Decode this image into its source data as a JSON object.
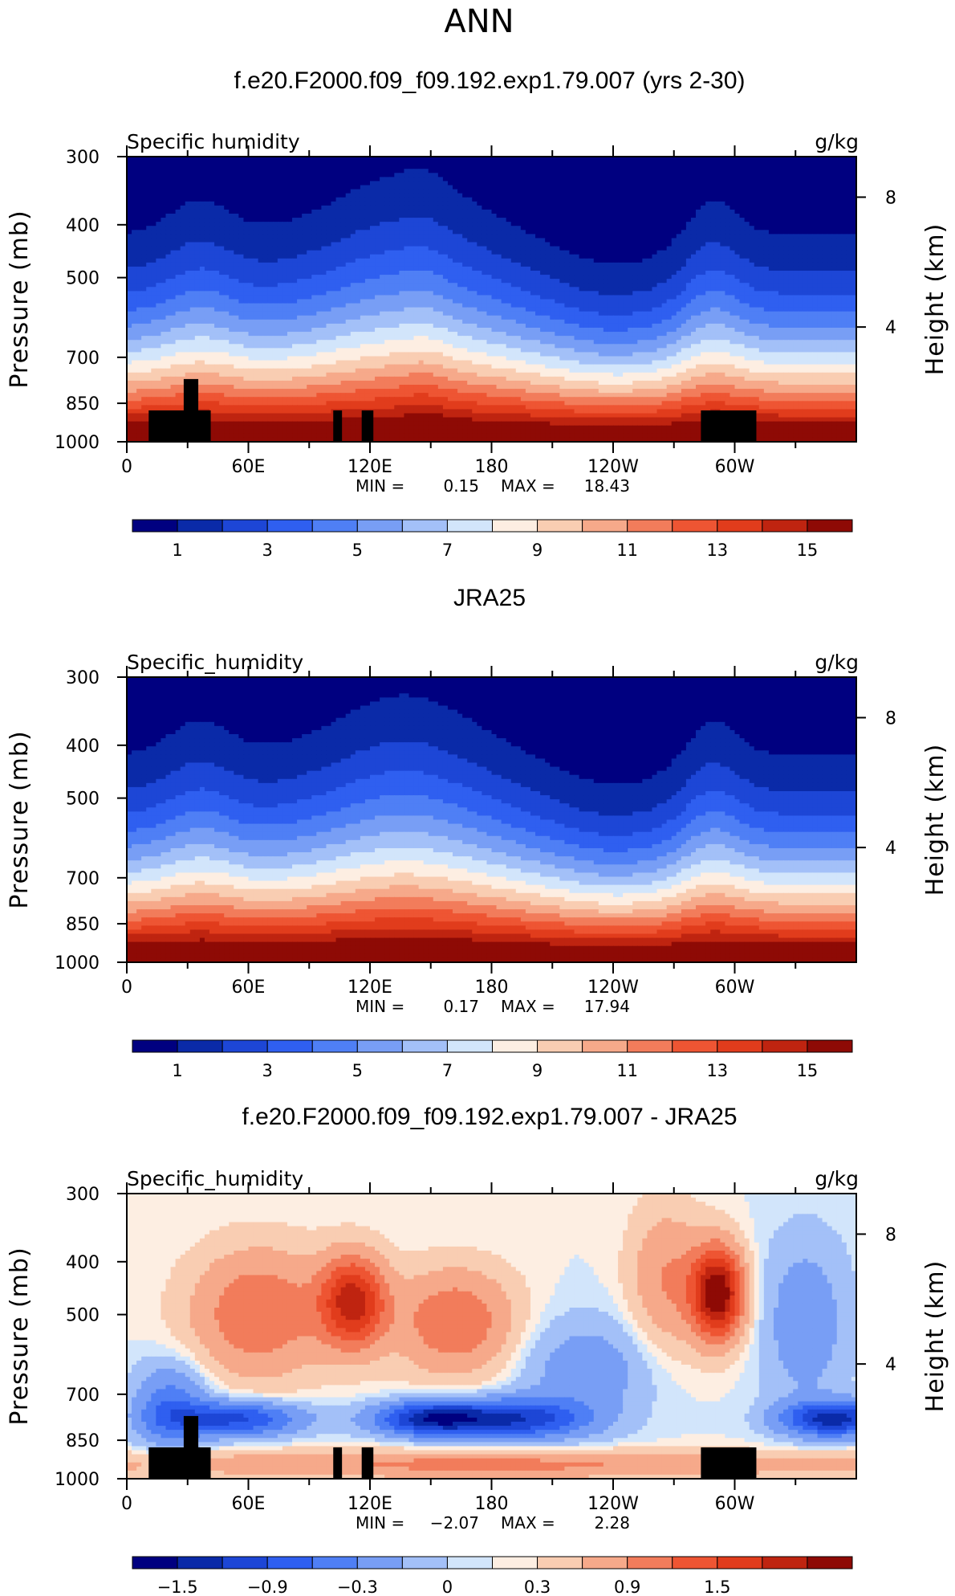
{
  "figure_title": "ANN",
  "panels": [
    {
      "title": "f.e20.F2000.f09_f09.192.exp1.79.007 (yrs 2-30)",
      "variable_label": "Specific humidity",
      "units": "g/kg",
      "min_label": "MIN =",
      "min_value": "0.15",
      "max_label": "MAX =",
      "max_value": "18.43",
      "colorbar_labels": [
        "1",
        "3",
        "5",
        "7",
        "9",
        "11",
        "13",
        "15"
      ]
    },
    {
      "title": "JRA25",
      "variable_label": "Specific_humidity",
      "units": "g/kg",
      "min_label": "MIN =",
      "min_value": "0.17",
      "max_label": "MAX =",
      "max_value": "17.94",
      "colorbar_labels": [
        "1",
        "3",
        "5",
        "7",
        "9",
        "11",
        "13",
        "15"
      ]
    },
    {
      "title": "f.e20.F2000.f09_f09.192.exp1.79.007 - JRA25",
      "variable_label": "Specific_humidity",
      "units": "g/kg",
      "min_label": "MIN =",
      "min_value": "−2.07",
      "max_label": "MAX =",
      "max_value": "2.28",
      "colorbar_labels": [
        "−1.5",
        "−0.9",
        "−0.3",
        "0",
        "0.3",
        "0.9",
        "1.5"
      ]
    }
  ],
  "chart_data": [
    {
      "type": "heatmap",
      "title": "f.e20.F2000.f09_f09.192.exp1.79.007 (yrs 2-30)",
      "xlabel": "",
      "ylabel": "Pressure (mb)",
      "y2label": "Height (km)",
      "x_ticks": [
        "0",
        "60E",
        "120E",
        "180",
        "120W",
        "60W"
      ],
      "y_ticks": [
        "300",
        "400",
        "500",
        "700",
        "850",
        "1000"
      ],
      "y2_ticks": [
        "8",
        "4"
      ],
      "ylim": [
        1000,
        300
      ],
      "colorbar_levels": [
        0,
        1,
        2,
        3,
        4,
        5,
        6,
        7,
        8,
        9,
        10,
        11,
        12,
        13,
        14,
        15,
        16
      ],
      "colorbar_colors": [
        "#000080",
        "#0a2aa8",
        "#1d46d6",
        "#2f5ff0",
        "#4f7ff5",
        "#789ef5",
        "#a3c0f8",
        "#d2e5fb",
        "#fdeee2",
        "#f9cdb2",
        "#f6a98a",
        "#f27c5b",
        "#ee5533",
        "#e13c1c",
        "#bf2410",
        "#8e0a05"
      ],
      "z_min": 0.15,
      "z_max": 18.43,
      "legend": "bottom"
    },
    {
      "type": "heatmap",
      "title": "JRA25",
      "xlabel": "",
      "ylabel": "Pressure (mb)",
      "y2label": "Height (km)",
      "x_ticks": [
        "0",
        "60E",
        "120E",
        "180",
        "120W",
        "60W"
      ],
      "y_ticks": [
        "300",
        "400",
        "500",
        "700",
        "850",
        "1000"
      ],
      "y2_ticks": [
        "8",
        "4"
      ],
      "ylim": [
        1000,
        300
      ],
      "colorbar_levels": [
        0,
        1,
        2,
        3,
        4,
        5,
        6,
        7,
        8,
        9,
        10,
        11,
        12,
        13,
        14,
        15,
        16
      ],
      "colorbar_colors": [
        "#000080",
        "#0a2aa8",
        "#1d46d6",
        "#2f5ff0",
        "#4f7ff5",
        "#789ef5",
        "#a3c0f8",
        "#d2e5fb",
        "#fdeee2",
        "#f9cdb2",
        "#f6a98a",
        "#f27c5b",
        "#ee5533",
        "#e13c1c",
        "#bf2410",
        "#8e0a05"
      ],
      "z_min": 0.17,
      "z_max": 17.94,
      "legend": "bottom"
    },
    {
      "type": "heatmap",
      "title": "f.e20.F2000.f09_f09.192.exp1.79.007 - JRA25",
      "xlabel": "",
      "ylabel": "Pressure (mb)",
      "y2label": "Height (km)",
      "x_ticks": [
        "0",
        "60E",
        "120E",
        "180",
        "120W",
        "60W"
      ],
      "y_ticks": [
        "300",
        "400",
        "500",
        "700",
        "850",
        "1000"
      ],
      "y2_ticks": [
        "8",
        "4"
      ],
      "ylim": [
        1000,
        300
      ],
      "colorbar_levels": [
        -1.8,
        -1.5,
        -1.2,
        -0.9,
        -0.6,
        -0.3,
        -0.1,
        0,
        0.1,
        0.3,
        0.6,
        0.9,
        1.2,
        1.5,
        1.8
      ],
      "colorbar_colors": [
        "#000080",
        "#0a2aa8",
        "#1d46d6",
        "#2f5ff0",
        "#4f7ff5",
        "#789ef5",
        "#a3c0f8",
        "#d2e5fb",
        "#fdeee2",
        "#f9cdb2",
        "#f6a98a",
        "#f27c5b",
        "#ee5533",
        "#e13c1c",
        "#bf2410",
        "#8e0a05"
      ],
      "z_min": -2.07,
      "z_max": 2.28,
      "legend": "bottom"
    }
  ]
}
